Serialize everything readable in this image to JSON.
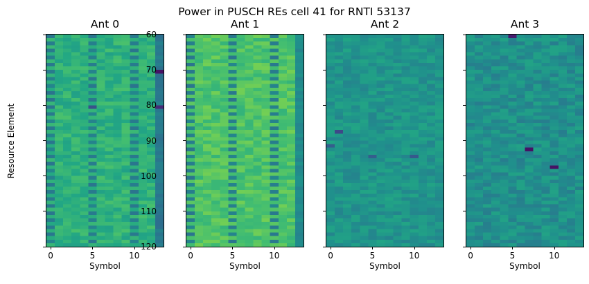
{
  "chart_data": {
    "type": "heatmap",
    "title": "Power in PUSCH REs cell 41 for RNTI 53137",
    "colormap": "viridis",
    "ylabel": "Resource Element",
    "xlabel": "Symbol",
    "x_range": [
      0,
      13
    ],
    "y_range": [
      60,
      120
    ],
    "y_inverted": true,
    "xticks": [
      0,
      5,
      10
    ],
    "yticks": [
      60,
      70,
      80,
      90,
      100,
      110,
      120
    ],
    "shared_y": true,
    "panels": [
      {
        "title": "Ant 0",
        "mean_level": 0.64,
        "spread": 0.07,
        "dmrs_symbols": [
          0,
          5,
          10
        ],
        "dmrs_dark_level": 0.42,
        "last_symbol_level": 0.4,
        "anomalies": [
          {
            "symbol": 13,
            "re": 70,
            "level": 0.05
          },
          {
            "symbol": 13,
            "re": 80,
            "level": 0.12
          },
          {
            "symbol": 5,
            "re": 80,
            "level": 0.25
          }
        ]
      },
      {
        "title": "Ant 1",
        "mean_level": 0.72,
        "spread": 0.07,
        "dmrs_symbols": [
          0,
          5,
          10
        ],
        "dmrs_dark_level": 0.42,
        "last_symbol_level": 0.48,
        "anomalies": []
      },
      {
        "title": "Ant 2",
        "mean_level": 0.52,
        "spread": 0.07,
        "dmrs_symbols": [],
        "dmrs_dark_level": null,
        "last_symbol_level": 0.52,
        "anomalies": [
          {
            "symbol": 1,
            "re": 87,
            "level": 0.22
          },
          {
            "symbol": 0,
            "re": 91,
            "level": 0.3
          },
          {
            "symbol": 5,
            "re": 94,
            "level": 0.3
          },
          {
            "symbol": 10,
            "re": 94,
            "level": 0.28
          }
        ]
      },
      {
        "title": "Ant 3",
        "mean_level": 0.5,
        "spread": 0.08,
        "dmrs_symbols": [],
        "dmrs_dark_level": null,
        "last_symbol_level": 0.5,
        "anomalies": [
          {
            "symbol": 7,
            "re": 92,
            "level": 0.05
          },
          {
            "symbol": 10,
            "re": 97,
            "level": 0.05
          },
          {
            "symbol": 5,
            "re": 60,
            "level": 0.08
          }
        ]
      }
    ]
  }
}
